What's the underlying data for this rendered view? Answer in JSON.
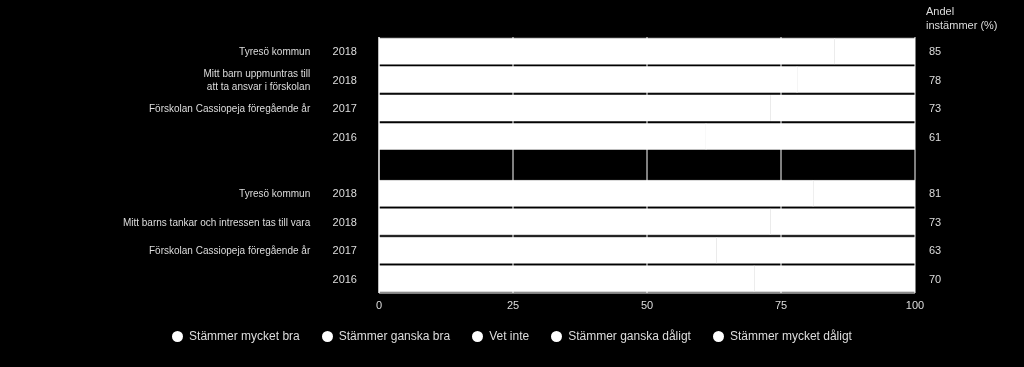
{
  "chart_data": {
    "type": "bar",
    "orientation": "horizontal",
    "stacked": true,
    "categories": [
      "Tyresö kommun 2018",
      "Mitt barn uppmuntras till\natt ta ansvar i förskolan 2018",
      "Förskolan Cassiopeja föregående år 2017",
      "2016",
      null,
      "Tyresö kommun 2018",
      "Mitt barns tankar och intressen tas till vara 2018",
      "Förskolan Cassiopeja föregående år 2017",
      "2016"
    ],
    "series": [
      {
        "name": "Stämmer mycket bra",
        "color": "#ffffff",
        "values": [
          85,
          78,
          73,
          61,
          null,
          81,
          73,
          63,
          70
        ]
      },
      {
        "name": "Stämmer ganska bra",
        "color": "#ffffff",
        "values": [
          null,
          null,
          null,
          null,
          null,
          null,
          null,
          null,
          null
        ]
      },
      {
        "name": "Vet inte",
        "color": "#ffffff",
        "values": [
          null,
          null,
          null,
          null,
          null,
          null,
          null,
          null,
          null
        ]
      },
      {
        "name": "Stämmer ganska dåligt",
        "color": "#ffffff",
        "values": [
          null,
          null,
          null,
          null,
          null,
          null,
          null,
          null,
          null
        ]
      },
      {
        "name": "Stämmer mycket dåligt",
        "color": "#ffffff",
        "values": [
          15,
          22,
          27,
          39,
          null,
          19,
          27,
          37,
          30
        ]
      }
    ],
    "annotations": [
      "85",
      "78",
      "73",
      "61",
      "81",
      "73",
      "63",
      "70"
    ],
    "y2label": "Andel instämmer (%)",
    "xlim": [
      0,
      100
    ],
    "xticks": [
      0,
      25,
      50,
      75,
      100
    ],
    "grid": "x",
    "legend": "bottom",
    "marker": "circle"
  }
}
